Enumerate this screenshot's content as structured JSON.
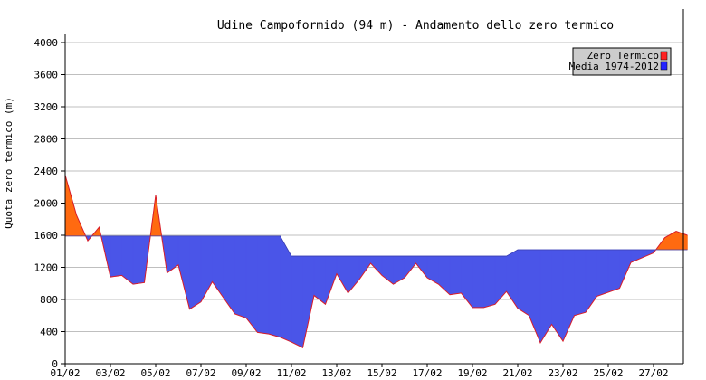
{
  "chart_data": {
    "type": "area",
    "title": "Udine Campoformido (94 m) - Andamento dello zero termico",
    "ylabel": "Quota zero termico (m)",
    "xlabel": "",
    "ylim": [
      0,
      4000
    ],
    "yticks": [
      0,
      400,
      800,
      1200,
      1600,
      2000,
      2400,
      2800,
      3200,
      3600,
      4000
    ],
    "xticks": [
      "01/02",
      "03/02",
      "05/02",
      "07/02",
      "09/02",
      "11/02",
      "13/02",
      "15/02",
      "17/02",
      "19/02",
      "21/02",
      "23/02",
      "25/02",
      "27/02"
    ],
    "grid": true,
    "legend_position": "top-right",
    "colors": {
      "above": "#ff6a10",
      "below": "#4a55e8",
      "line": "#d81e2a",
      "grid": "#bfbfbf",
      "legend_bg": "#cccccc",
      "swatch_zero": "#ff2222",
      "swatch_media": "#2222ff"
    },
    "series": [
      {
        "name": "Zero Termico",
        "values": [
          2350,
          1850,
          1530,
          1700,
          1080,
          1100,
          990,
          1010,
          2100,
          1130,
          1230,
          680,
          770,
          1020,
          820,
          620,
          570,
          390,
          370,
          330,
          270,
          200,
          850,
          740,
          1120,
          880,
          1050,
          1250,
          1100,
          990,
          1070,
          1250,
          1070,
          990,
          860,
          880,
          700,
          700,
          740,
          900,
          690,
          600,
          260,
          490,
          280,
          600,
          640,
          840,
          890,
          940,
          1260,
          1320,
          1380,
          1570,
          1650,
          1600
        ]
      },
      {
        "name": "Media 1974-2012",
        "values": [
          1590,
          1590,
          1590,
          1590,
          1590,
          1590,
          1590,
          1590,
          1590,
          1590,
          1590,
          1590,
          1590,
          1590,
          1590,
          1590,
          1590,
          1590,
          1590,
          1590,
          1340,
          1340,
          1340,
          1340,
          1340,
          1340,
          1340,
          1340,
          1340,
          1340,
          1340,
          1340,
          1340,
          1340,
          1340,
          1340,
          1340,
          1340,
          1340,
          1340,
          1420,
          1420,
          1420,
          1420,
          1420,
          1420,
          1420,
          1420,
          1420,
          1420,
          1420,
          1420,
          1420,
          1420,
          1420,
          1420
        ]
      }
    ]
  }
}
